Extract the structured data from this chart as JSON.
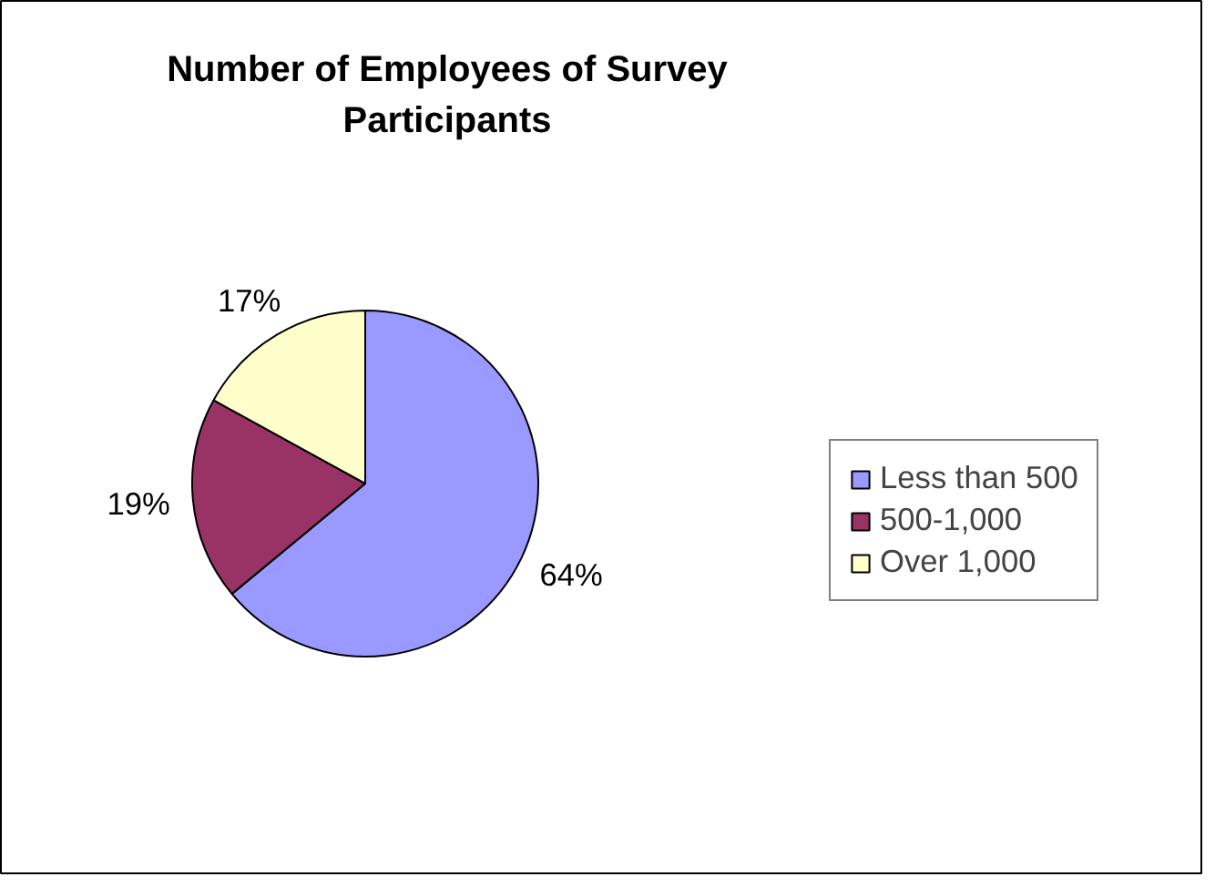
{
  "chart_data": {
    "type": "pie",
    "title": "Number of Employees of Survey Participants",
    "categories": [
      "Less than 500",
      "500-1,000",
      "Over 1,000"
    ],
    "values": [
      64,
      19,
      17
    ],
    "colors": [
      "#9999ff",
      "#993366",
      "#ffffcc"
    ],
    "value_labels": [
      "64%",
      "19%",
      "17%"
    ],
    "legend": "right"
  }
}
